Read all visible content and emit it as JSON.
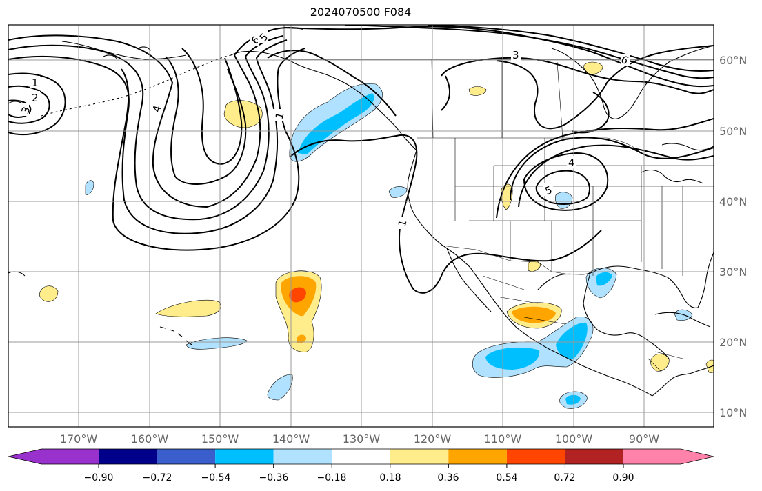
{
  "title": "2024070500 F084",
  "map": {
    "projection": "plate-carree",
    "lon_range": [
      -180,
      -80
    ],
    "lat_range": [
      8,
      65
    ],
    "grid": true
  },
  "lon_labels": [
    "170°W",
    "160°W",
    "150°W",
    "140°W",
    "130°W",
    "120°W",
    "110°W",
    "100°W",
    "90°W"
  ],
  "lat_labels": [
    "60°N",
    "50°N",
    "40°N",
    "30°N",
    "20°N",
    "10°N"
  ],
  "colorbar": {
    "colors": [
      "#9932cc",
      "#00008b",
      "#3a5fcd",
      "#00bfff",
      "#b0e2ff",
      "#ffffff",
      "#ffec8b",
      "#ffa500",
      "#ff4500",
      "#b22222",
      "#ff82ab"
    ],
    "tick_labels": [
      "−0.90",
      "−0.72",
      "−0.54",
      "−0.36",
      "−0.18",
      "0.18",
      "0.36",
      "0.54",
      "0.72",
      "0.90"
    ],
    "extend": "both"
  },
  "contour_labels": [
    "1",
    "2",
    "3",
    "4",
    "6",
    "5",
    "1",
    "1",
    "3",
    "6",
    "4",
    "5"
  ],
  "colors": {
    "grid": "#999999",
    "contour": "#000000",
    "coast": "#000000",
    "tick_label": "#666666"
  }
}
